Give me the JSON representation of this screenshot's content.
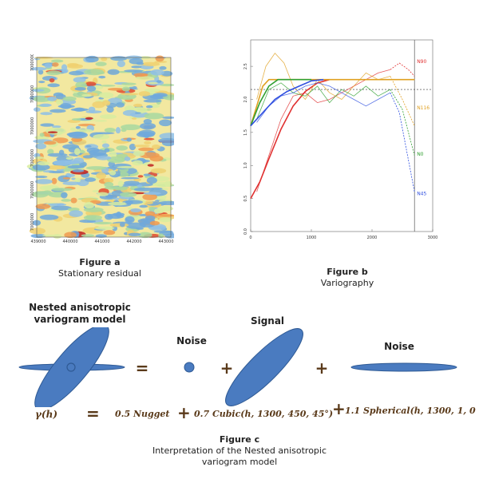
{
  "figure_a": {
    "title": "Figure a",
    "subtitle": "Stationary residual",
    "x_ticks": [
      "439000",
      "440000",
      "441000",
      "442000",
      "443000"
    ],
    "y_ticks": [
      "7000000",
      "7000000",
      "7000000",
      "7000000",
      "7000000",
      "7000000"
    ]
  },
  "figure_b": {
    "title": "Figure b",
    "subtitle": "Variography",
    "x_ticks": [
      "0",
      "1000",
      "2000",
      "3000"
    ],
    "y_ticks": [
      "0.0",
      "0.5",
      "1.0",
      "1.5",
      "2.0",
      "2.5"
    ],
    "direction_labels": [
      {
        "text": "N90",
        "color": "#e03030"
      },
      {
        "text": "N116",
        "color": "#e0a020"
      },
      {
        "text": "N0",
        "color": "#30a030"
      },
      {
        "text": "N45",
        "color": "#3050e0"
      }
    ]
  },
  "chart_data": {
    "type": "line",
    "xlabel": "",
    "ylabel": "",
    "xlim": [
      0,
      3000
    ],
    "ylim": [
      0,
      2.9
    ],
    "sill": 2.15,
    "lag_cutoff": 2700,
    "series": [
      {
        "name": "N90",
        "color": "#e03030",
        "model": [
          [
            0,
            0.5
          ],
          [
            150,
            0.75
          ],
          [
            300,
            1.1
          ],
          [
            500,
            1.55
          ],
          [
            700,
            1.9
          ],
          [
            900,
            2.12
          ],
          [
            1100,
            2.25
          ],
          [
            1300,
            2.3
          ]
        ],
        "experimental": [
          [
            100,
            0.6
          ],
          [
            300,
            1.15
          ],
          [
            500,
            1.7
          ],
          [
            700,
            2.05
          ],
          [
            900,
            2.1
          ],
          [
            1100,
            1.95
          ],
          [
            1300,
            2.0
          ],
          [
            1500,
            2.1
          ],
          [
            1700,
            2.2
          ],
          [
            1900,
            2.3
          ],
          [
            2100,
            2.4
          ],
          [
            2300,
            2.45
          ],
          [
            2450,
            2.55
          ],
          [
            2600,
            2.45
          ],
          [
            2700,
            2.35
          ]
        ]
      },
      {
        "name": "N116",
        "color": "#e0a020",
        "model": [
          [
            0,
            1.6
          ],
          [
            100,
            1.9
          ],
          [
            200,
            2.2
          ],
          [
            300,
            2.3
          ],
          [
            2700,
            2.3
          ]
        ],
        "experimental": [
          [
            100,
            2.0
          ],
          [
            250,
            2.5
          ],
          [
            400,
            2.7
          ],
          [
            550,
            2.55
          ],
          [
            700,
            2.2
          ],
          [
            900,
            2.0
          ],
          [
            1100,
            2.3
          ],
          [
            1300,
            2.1
          ],
          [
            1500,
            2.0
          ],
          [
            1700,
            2.2
          ],
          [
            1900,
            2.4
          ],
          [
            2100,
            2.3
          ],
          [
            2300,
            2.35
          ],
          [
            2500,
            2.0
          ],
          [
            2700,
            1.6
          ]
        ]
      },
      {
        "name": "N0",
        "color": "#30a030",
        "model": [
          [
            0,
            1.6
          ],
          [
            150,
            1.95
          ],
          [
            300,
            2.2
          ],
          [
            450,
            2.3
          ],
          [
            1000,
            2.3
          ]
        ],
        "experimental": [
          [
            100,
            1.7
          ],
          [
            300,
            2.15
          ],
          [
            500,
            2.25
          ],
          [
            700,
            2.1
          ],
          [
            900,
            2.05
          ],
          [
            1100,
            2.2
          ],
          [
            1300,
            1.95
          ],
          [
            1500,
            2.15
          ],
          [
            1700,
            2.05
          ],
          [
            1900,
            2.2
          ],
          [
            2100,
            2.05
          ],
          [
            2300,
            2.15
          ],
          [
            2500,
            1.85
          ],
          [
            2700,
            1.15
          ]
        ]
      },
      {
        "name": "N45",
        "color": "#3050e0",
        "model": [
          [
            0,
            1.6
          ],
          [
            200,
            1.8
          ],
          [
            400,
            2.0
          ],
          [
            600,
            2.12
          ],
          [
            800,
            2.2
          ],
          [
            1000,
            2.28
          ],
          [
            1200,
            2.3
          ]
        ],
        "experimental": [
          [
            100,
            1.65
          ],
          [
            300,
            1.9
          ],
          [
            500,
            2.05
          ],
          [
            700,
            2.1
          ],
          [
            900,
            2.2
          ],
          [
            1100,
            2.25
          ],
          [
            1300,
            2.2
          ],
          [
            1500,
            2.1
          ],
          [
            1700,
            2.0
          ],
          [
            1900,
            1.9
          ],
          [
            2100,
            2.0
          ],
          [
            2300,
            2.1
          ],
          [
            2450,
            1.8
          ],
          [
            2700,
            0.6
          ]
        ]
      }
    ]
  },
  "nested": {
    "heading_line1": "Nested  anisotropic",
    "heading_line2": "variogram model",
    "noise1_label": "Noise",
    "signal_label": "Signal",
    "noise2_label": "Noise",
    "equals": "=",
    "plus1": "+",
    "plus2": "+",
    "ellipse_color": "#4a7bc0",
    "ellipse_stroke": "#2f5a94"
  },
  "equation": {
    "lhs": "γ(h)",
    "eq_sign": "=",
    "term1": "0.5 Nugget",
    "plus1": "+",
    "term2": "0.7 Cubic(h, 1300, 450, 45°)",
    "plus2": "+",
    "term3": "1.1 Spherical(h, 1300, 1, 0"
  },
  "figure_c": {
    "title": "Figure c",
    "subtitle_line1": "Interpretation  of the Nested anisotropic",
    "subtitle_line2": "variogram model"
  }
}
